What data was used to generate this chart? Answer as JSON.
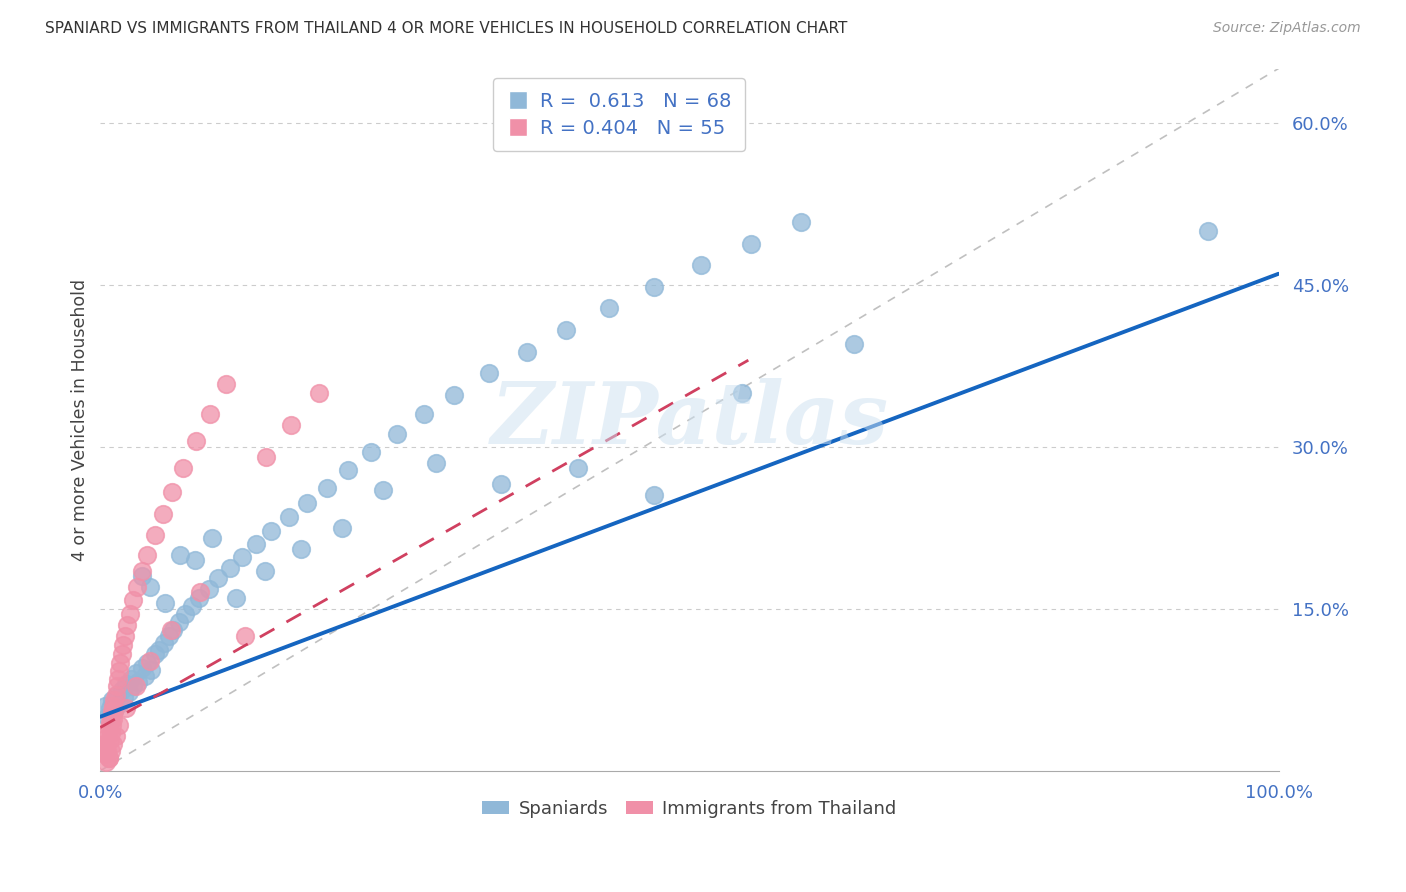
{
  "title": "SPANIARD VS IMMIGRANTS FROM THAILAND 4 OR MORE VEHICLES IN HOUSEHOLD CORRELATION CHART",
  "source": "Source: ZipAtlas.com",
  "ylabel": "4 or more Vehicles in Household",
  "xlim": [
    0,
    1.0
  ],
  "ylim": [
    0,
    0.65
  ],
  "xticks": [
    0.0,
    0.2,
    0.4,
    0.6,
    0.8,
    1.0
  ],
  "xticklabels": [
    "0.0%",
    "",
    "",
    "",
    "",
    "100.0%"
  ],
  "yticks": [
    0.0,
    0.15,
    0.3,
    0.45,
    0.6
  ],
  "yticklabels": [
    "",
    "15.0%",
    "30.0%",
    "45.0%",
    "60.0%"
  ],
  "R_spaniards": "0.613",
  "N_spaniards": "68",
  "R_thailand": "0.404",
  "N_thailand": "55",
  "blue_line_x": [
    0.0,
    1.0
  ],
  "blue_line_y": [
    0.05,
    0.46
  ],
  "pink_line_x": [
    0.0,
    0.55
  ],
  "pink_line_y": [
    0.04,
    0.38
  ],
  "diag_line_x": [
    0.0,
    1.0
  ],
  "diag_line_y": [
    0.0,
    0.65
  ],
  "blue_line_color": "#1565c0",
  "pink_line_color": "#d04060",
  "blue_dot_color": "#90b8d8",
  "pink_dot_color": "#f090a8",
  "watermark": "ZIPatlas",
  "background_color": "#ffffff",
  "grid_color": "#cccccc",
  "spaniards_x": [
    0.004,
    0.006,
    0.008,
    0.01,
    0.012,
    0.014,
    0.016,
    0.018,
    0.02,
    0.022,
    0.024,
    0.026,
    0.028,
    0.03,
    0.032,
    0.035,
    0.038,
    0.04,
    0.043,
    0.046,
    0.05,
    0.054,
    0.058,
    0.062,
    0.067,
    0.072,
    0.078,
    0.084,
    0.092,
    0.1,
    0.11,
    0.12,
    0.132,
    0.145,
    0.16,
    0.175,
    0.192,
    0.21,
    0.23,
    0.252,
    0.275,
    0.3,
    0.33,
    0.362,
    0.395,
    0.432,
    0.47,
    0.51,
    0.552,
    0.595,
    0.035,
    0.042,
    0.055,
    0.068,
    0.08,
    0.095,
    0.115,
    0.14,
    0.17,
    0.205,
    0.24,
    0.285,
    0.34,
    0.405,
    0.47,
    0.545,
    0.64,
    0.94
  ],
  "spaniards_y": [
    0.06,
    0.05,
    0.058,
    0.065,
    0.055,
    0.07,
    0.062,
    0.075,
    0.068,
    0.08,
    0.073,
    0.085,
    0.078,
    0.09,
    0.082,
    0.095,
    0.088,
    0.1,
    0.093,
    0.108,
    0.112,
    0.118,
    0.125,
    0.13,
    0.138,
    0.145,
    0.152,
    0.16,
    0.168,
    0.178,
    0.188,
    0.198,
    0.21,
    0.222,
    0.235,
    0.248,
    0.262,
    0.278,
    0.295,
    0.312,
    0.33,
    0.348,
    0.368,
    0.388,
    0.408,
    0.428,
    0.448,
    0.468,
    0.488,
    0.508,
    0.18,
    0.17,
    0.155,
    0.2,
    0.195,
    0.215,
    0.16,
    0.185,
    0.205,
    0.225,
    0.26,
    0.285,
    0.265,
    0.28,
    0.255,
    0.35,
    0.395,
    0.5
  ],
  "thailand_x": [
    0.002,
    0.003,
    0.004,
    0.005,
    0.005,
    0.006,
    0.006,
    0.007,
    0.007,
    0.008,
    0.008,
    0.009,
    0.009,
    0.01,
    0.01,
    0.011,
    0.011,
    0.012,
    0.012,
    0.013,
    0.014,
    0.015,
    0.016,
    0.017,
    0.018,
    0.019,
    0.021,
    0.023,
    0.025,
    0.028,
    0.031,
    0.035,
    0.04,
    0.046,
    0.053,
    0.061,
    0.07,
    0.081,
    0.093,
    0.107,
    0.123,
    0.141,
    0.162,
    0.186,
    0.005,
    0.007,
    0.009,
    0.011,
    0.013,
    0.016,
    0.022,
    0.03,
    0.042,
    0.06,
    0.085
  ],
  "thailand_y": [
    0.02,
    0.025,
    0.015,
    0.03,
    0.022,
    0.035,
    0.018,
    0.04,
    0.012,
    0.045,
    0.028,
    0.05,
    0.035,
    0.055,
    0.042,
    0.06,
    0.048,
    0.065,
    0.055,
    0.07,
    0.078,
    0.085,
    0.092,
    0.1,
    0.108,
    0.116,
    0.125,
    0.135,
    0.145,
    0.158,
    0.17,
    0.185,
    0.2,
    0.218,
    0.238,
    0.258,
    0.28,
    0.305,
    0.33,
    0.358,
    0.125,
    0.29,
    0.32,
    0.35,
    0.008,
    0.012,
    0.018,
    0.025,
    0.032,
    0.042,
    0.058,
    0.078,
    0.102,
    0.13,
    0.165
  ]
}
